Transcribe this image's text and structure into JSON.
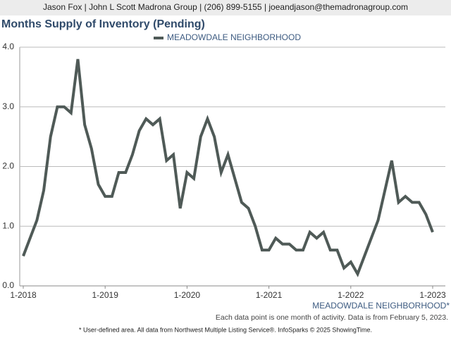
{
  "header": "Jason Fox | John L Scott Madrona Group | (206) 899-5155 | joeandjason@themadronagroup.com",
  "chart_data": {
    "type": "line",
    "title": "Months Supply of Inventory (Pending)",
    "categories": [
      "1-2018",
      null,
      null,
      null,
      null,
      null,
      null,
      null,
      null,
      null,
      null,
      null,
      "1-2019",
      null,
      null,
      null,
      null,
      null,
      null,
      null,
      null,
      null,
      null,
      null,
      "1-2020",
      null,
      null,
      null,
      null,
      null,
      null,
      null,
      null,
      null,
      null,
      null,
      "1-2021",
      null,
      null,
      null,
      null,
      null,
      null,
      null,
      null,
      null,
      null,
      null,
      "1-2022",
      null,
      null,
      null,
      null,
      null,
      null,
      null,
      null,
      null,
      null,
      null,
      "1-2023"
    ],
    "series": [
      {
        "name": "MEADOWDALE NEIGHBORHOOD",
        "color": "#4f5a57",
        "values": [
          0.5,
          0.8,
          1.1,
          1.6,
          2.5,
          3.0,
          3.0,
          2.9,
          3.8,
          2.7,
          2.3,
          1.7,
          1.5,
          1.5,
          1.9,
          1.9,
          2.2,
          2.6,
          2.8,
          2.7,
          2.8,
          2.1,
          2.2,
          1.3,
          1.9,
          1.8,
          2.5,
          2.8,
          2.5,
          1.9,
          2.2,
          1.8,
          1.4,
          1.3,
          1.0,
          0.6,
          0.6,
          0.8,
          0.7,
          0.7,
          0.6,
          0.6,
          0.9,
          0.8,
          0.9,
          0.6,
          0.6,
          0.3,
          0.4,
          0.2,
          0.5,
          0.8,
          1.1,
          1.6,
          2.1,
          1.4,
          1.5,
          1.4,
          1.4,
          1.2,
          0.9
        ]
      }
    ],
    "ylim": [
      0,
      4
    ],
    "yticks": [
      {
        "value": 0,
        "label": "0.0"
      },
      {
        "value": 1,
        "label": "1.0"
      },
      {
        "value": 2,
        "label": "2.0"
      },
      {
        "value": 3,
        "label": "3.0"
      },
      {
        "value": 4,
        "label": "4.0"
      }
    ],
    "grid": true,
    "x_label": "MEADOWDALE NEIGHBORHOOD*",
    "note": "Each data point is one month of activity. Data is from February 5, 2023."
  },
  "footnote": "* User-defined area. All data from Northwest Multiple Listing Service®. InfoSparks © 2025 ShowingTime."
}
